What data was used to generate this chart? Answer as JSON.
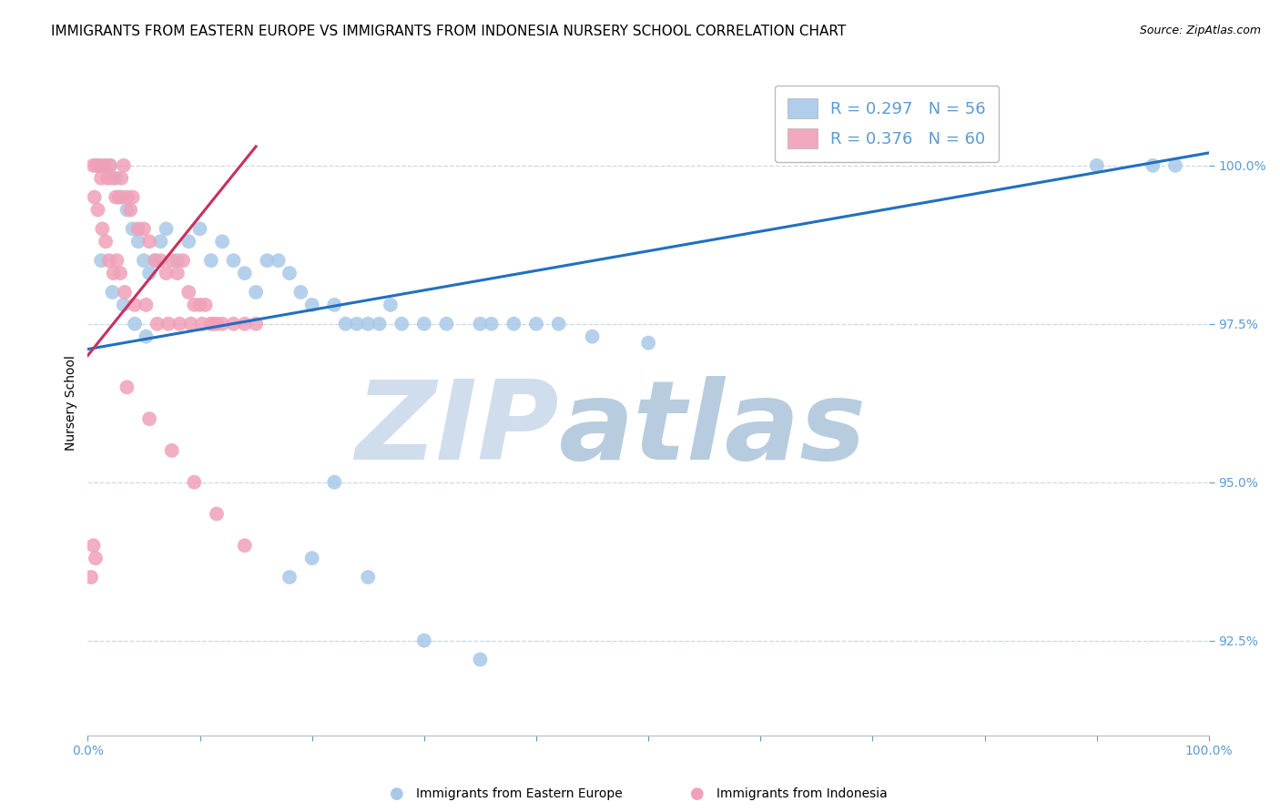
{
  "title": "IMMIGRANTS FROM EASTERN EUROPE VS IMMIGRANTS FROM INDONESIA NURSERY SCHOOL CORRELATION CHART",
  "source": "Source: ZipAtlas.com",
  "xlabel_blue": "Immigrants from Eastern Europe",
  "xlabel_pink": "Immigrants from Indonesia",
  "ylabel": "Nursery School",
  "legend_blue": "R = 0.297   N = 56",
  "legend_pink": "R = 0.376   N = 60",
  "blue_color": "#a8c8e8",
  "pink_color": "#f0a0b8",
  "blue_line_color": "#2070c0",
  "pink_line_color": "#c83060",
  "axis_color": "#5b9bd5",
  "grid_color": "#c8d8e8",
  "xlim": [
    0.0,
    100.0
  ],
  "ylim": [
    91.0,
    101.5
  ],
  "yticks": [
    92.5,
    95.0,
    97.5,
    100.0
  ],
  "xtick_positions": [
    0.0,
    10.0,
    20.0,
    30.0,
    40.0,
    50.0,
    60.0,
    70.0,
    80.0,
    90.0,
    100.0
  ],
  "blue_scatter_x": [
    1.0,
    1.5,
    2.0,
    2.5,
    3.0,
    3.5,
    4.0,
    4.5,
    5.0,
    5.5,
    6.0,
    6.5,
    7.0,
    1.2,
    2.2,
    3.2,
    4.2,
    5.2,
    8.0,
    9.0,
    10.0,
    11.0,
    12.0,
    13.0,
    14.0,
    15.0,
    16.0,
    17.0,
    18.0,
    19.0,
    20.0,
    22.0,
    23.0,
    24.0,
    25.0,
    26.0,
    27.0,
    28.0,
    30.0,
    32.0,
    35.0,
    36.0,
    38.0,
    40.0,
    42.0,
    45.0,
    50.0,
    90.0,
    95.0,
    97.0,
    18.0,
    20.0,
    25.0,
    30.0,
    35.0,
    22.0
  ],
  "blue_scatter_y": [
    100.0,
    100.0,
    100.0,
    99.8,
    99.5,
    99.3,
    99.0,
    98.8,
    98.5,
    98.3,
    98.5,
    98.8,
    99.0,
    98.5,
    98.0,
    97.8,
    97.5,
    97.3,
    98.5,
    98.8,
    99.0,
    98.5,
    98.8,
    98.5,
    98.3,
    98.0,
    98.5,
    98.5,
    98.3,
    98.0,
    97.8,
    97.8,
    97.5,
    97.5,
    97.5,
    97.5,
    97.8,
    97.5,
    97.5,
    97.5,
    97.5,
    97.5,
    97.5,
    97.5,
    97.5,
    97.3,
    97.2,
    100.0,
    100.0,
    100.0,
    93.5,
    93.8,
    93.5,
    92.5,
    92.2,
    95.0
  ],
  "pink_scatter_x": [
    0.5,
    0.8,
    1.0,
    1.2,
    1.5,
    1.8,
    2.0,
    2.2,
    2.5,
    2.8,
    3.0,
    3.2,
    3.5,
    3.8,
    4.0,
    4.5,
    5.0,
    5.5,
    6.0,
    6.5,
    7.0,
    7.5,
    8.0,
    8.5,
    9.0,
    9.5,
    10.0,
    10.5,
    11.0,
    11.5,
    0.6,
    0.9,
    1.3,
    1.6,
    1.9,
    2.3,
    2.6,
    2.9,
    3.3,
    4.2,
    5.2,
    6.2,
    7.2,
    8.2,
    9.2,
    10.2,
    11.2,
    12.0,
    13.0,
    14.0,
    15.0,
    3.5,
    5.5,
    7.5,
    9.5,
    11.5,
    14.0,
    0.5,
    0.7,
    0.3
  ],
  "pink_scatter_y": [
    100.0,
    100.0,
    100.0,
    99.8,
    100.0,
    99.8,
    100.0,
    99.8,
    99.5,
    99.5,
    99.8,
    100.0,
    99.5,
    99.3,
    99.5,
    99.0,
    99.0,
    98.8,
    98.5,
    98.5,
    98.3,
    98.5,
    98.3,
    98.5,
    98.0,
    97.8,
    97.8,
    97.8,
    97.5,
    97.5,
    99.5,
    99.3,
    99.0,
    98.8,
    98.5,
    98.3,
    98.5,
    98.3,
    98.0,
    97.8,
    97.8,
    97.5,
    97.5,
    97.5,
    97.5,
    97.5,
    97.5,
    97.5,
    97.5,
    97.5,
    97.5,
    96.5,
    96.0,
    95.5,
    95.0,
    94.5,
    94.0,
    94.0,
    93.8,
    93.5
  ],
  "blue_trend_x": [
    0.0,
    100.0
  ],
  "blue_trend_y": [
    97.1,
    100.2
  ],
  "pink_trend_x": [
    0.0,
    15.0
  ],
  "pink_trend_y": [
    97.0,
    100.3
  ],
  "watermark_zip": "ZIP",
  "watermark_atlas": "atlas",
  "watermark_color_zip": "#d0dded",
  "watermark_color_atlas": "#b8cce0",
  "title_fontsize": 11,
  "source_fontsize": 9,
  "axis_label_fontsize": 10,
  "tick_fontsize": 10,
  "legend_fontsize": 13
}
